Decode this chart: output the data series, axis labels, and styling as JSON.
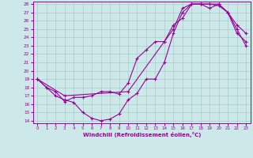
{
  "xlabel": "Windchill (Refroidissement éolien,°C)",
  "bg_color": "#cce8e8",
  "line_color": "#990099",
  "grid_color": "#aacccc",
  "xlim": [
    -0.5,
    23.5
  ],
  "ylim": [
    13.7,
    28.3
  ],
  "xticks": [
    0,
    1,
    2,
    3,
    4,
    5,
    6,
    7,
    8,
    9,
    10,
    11,
    12,
    13,
    14,
    15,
    16,
    17,
    18,
    19,
    20,
    21,
    22,
    23
  ],
  "yticks": [
    14,
    15,
    16,
    17,
    18,
    19,
    20,
    21,
    22,
    23,
    24,
    25,
    26,
    27,
    28
  ],
  "curve1_x": [
    0,
    1,
    2,
    3,
    4,
    5,
    6,
    7,
    8,
    9,
    10,
    11,
    12,
    13,
    14,
    15,
    16,
    17,
    18,
    19,
    20,
    21,
    22,
    23
  ],
  "curve1_y": [
    19.0,
    18.0,
    17.0,
    16.5,
    16.2,
    15.0,
    14.3,
    14.0,
    14.2,
    14.8,
    16.5,
    17.3,
    19.0,
    19.0,
    21.0,
    24.5,
    27.0,
    28.0,
    28.0,
    27.5,
    28.0,
    27.0,
    25.0,
    23.0
  ],
  "curve2_x": [
    0,
    1,
    2,
    3,
    4,
    5,
    6,
    7,
    8,
    9,
    10,
    11,
    12,
    13,
    14,
    15,
    16,
    17,
    18,
    19,
    20,
    21,
    22,
    23
  ],
  "curve2_y": [
    19.0,
    18.0,
    17.5,
    16.3,
    16.8,
    16.8,
    17.0,
    17.5,
    17.5,
    17.2,
    18.5,
    21.5,
    22.5,
    23.5,
    23.5,
    25.5,
    26.3,
    28.0,
    28.0,
    28.0,
    27.8,
    27.0,
    25.5,
    24.5
  ],
  "curve3_x": [
    0,
    3,
    10,
    14,
    15,
    16,
    17,
    18,
    19,
    20,
    21,
    22,
    23
  ],
  "curve3_y": [
    19.0,
    17.0,
    17.5,
    23.5,
    25.0,
    27.5,
    28.0,
    28.0,
    28.0,
    28.0,
    27.0,
    24.5,
    23.5
  ],
  "marker": "+"
}
